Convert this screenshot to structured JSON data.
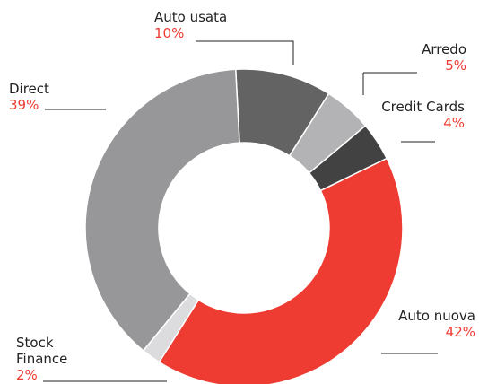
{
  "chart_data": {
    "type": "donut",
    "categories": [
      "Auto usata",
      "Arredo",
      "Credit Cards",
      "Auto nuova",
      "Stock Finance",
      "Direct"
    ],
    "values": [
      10,
      5,
      4,
      42,
      2,
      39
    ],
    "value_labels": [
      "10%",
      "5%",
      "4%",
      "42%",
      "2%",
      "39%"
    ],
    "colors": [
      "#636363",
      "#b3b3b5",
      "#424242",
      "#ee3c33",
      "#dcdcde",
      "#97979a"
    ]
  }
}
